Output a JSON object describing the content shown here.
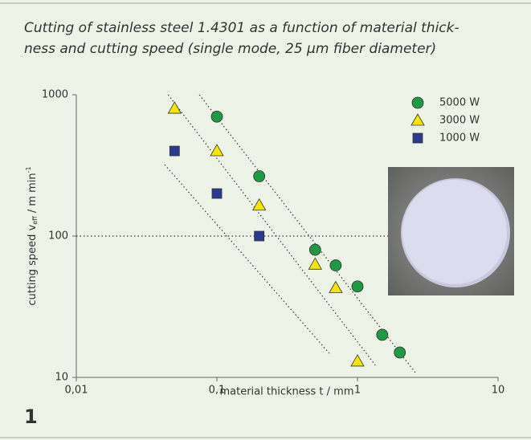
{
  "figure_number": "1",
  "chart_data": {
    "type": "scatter",
    "title": [
      "Cutting of stainless steel 1.4301 as a function of material thick-",
      "ness and cutting speed (single mode, 25 µm fiber diameter)"
    ],
    "xlabel": "material thickness t / mm",
    "ylabel": {
      "text": "cutting speed v",
      "sub": "eff",
      "unit": " / m min",
      "sup": "-1"
    },
    "xscale": "log",
    "yscale": "log",
    "xlim": [
      0.01,
      10
    ],
    "ylim": [
      10,
      1000
    ],
    "xticks": [
      {
        "value": 0.01,
        "label": "0,01"
      },
      {
        "value": 0.1,
        "label": "0,1"
      },
      1,
      10
    ],
    "yticks": [
      10,
      100,
      1000
    ],
    "legend": "upper right",
    "series": [
      {
        "name": "5000 W",
        "color": "#1e9a45",
        "marker": "circle",
        "x": [
          0.1,
          0.2,
          0.5,
          0.7,
          1,
          1.5,
          2
        ],
        "values": [
          700,
          265,
          80,
          62,
          44,
          20,
          15
        ]
      },
      {
        "name": "3000 W",
        "color": "#f4e600",
        "marker": "triangle",
        "x": [
          0.05,
          0.1,
          0.2,
          0.5,
          0.7,
          1
        ],
        "values": [
          800,
          400,
          165,
          63,
          43,
          13
        ]
      },
      {
        "name": "1000 W",
        "color": "#2b3a8f",
        "marker": "square",
        "x": [
          0.05,
          0.1,
          0.2
        ],
        "values": [
          400,
          200,
          100
        ]
      }
    ],
    "trend_lines": [
      {
        "x": [
          0.075,
          2.6
        ],
        "values": [
          1000,
          10.7
        ]
      },
      {
        "x": [
          0.045,
          1.34
        ],
        "values": [
          1000,
          12.2
        ]
      },
      {
        "x": [
          0.0425,
          0.63
        ],
        "values": [
          320,
          14.8
        ]
      }
    ],
    "reference_line": {
      "x": [
        0.01,
        2
      ],
      "values": [
        100,
        100
      ]
    }
  }
}
